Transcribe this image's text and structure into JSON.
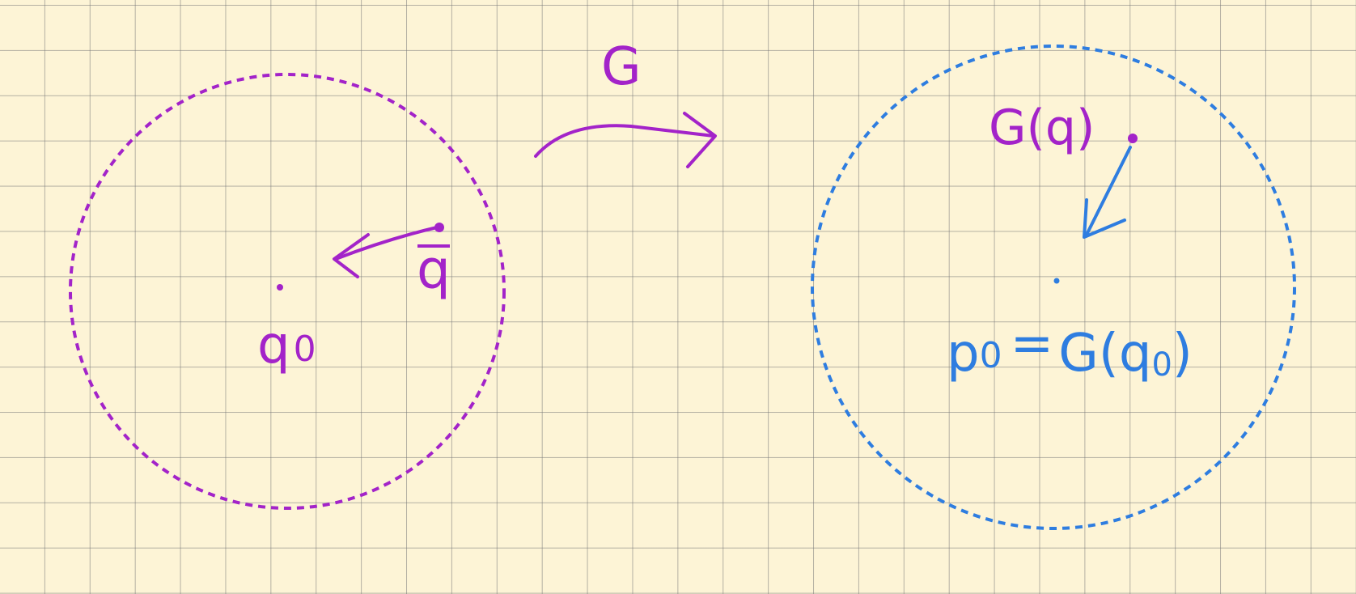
{
  "diagram": {
    "colors": {
      "background": "#fdf4d6",
      "grid": "#8a8a8a",
      "domain_color": "#a323c9",
      "codomain_color": "#2e7de0"
    },
    "map_label": "G",
    "left_region": {
      "center_label_main": "q",
      "center_label_sub": "0",
      "moving_point_label": "q"
    },
    "right_region": {
      "image_point_label": "G(q)",
      "center_label_lhs_main": "p",
      "center_label_lhs_sub": "0",
      "center_label_rhs": "G(q",
      "center_label_rhs_sub": "0",
      "center_label_rhs_close": ")",
      "equals": "="
    }
  }
}
